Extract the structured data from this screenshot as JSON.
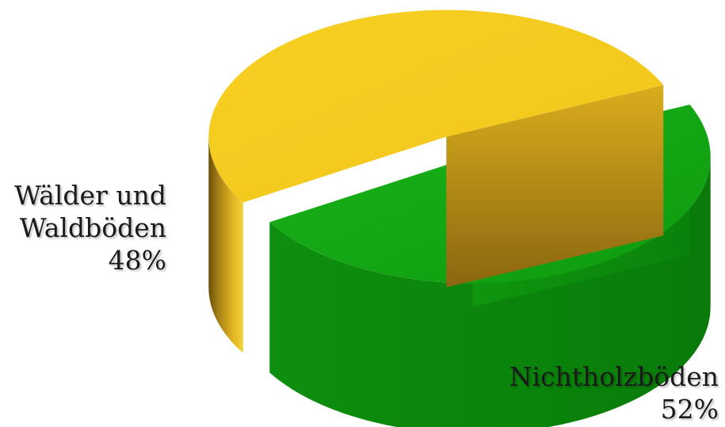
{
  "chart_data": {
    "type": "pie",
    "style": "3d-exploded",
    "slices": [
      {
        "label_lines": [
          "Wälder und",
          "Waldböden"
        ],
        "value": 48,
        "value_label": "48%",
        "color": "#16a516"
      },
      {
        "label_lines": [
          "Nichtholzböden"
        ],
        "value": 52,
        "value_label": "52%",
        "color": "#f2c81c"
      }
    ]
  }
}
